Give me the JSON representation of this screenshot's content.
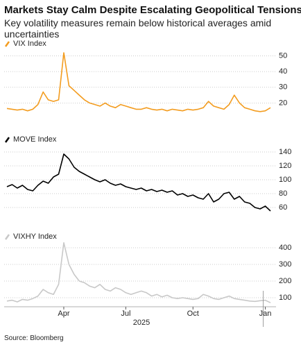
{
  "header": {
    "title": "Markets Stay Calm Despite Escalating Geopolitical Tensions",
    "subtitle": "Key volatility measures remain below historical averages amid uncertainties"
  },
  "chart_data": [
    {
      "type": "line",
      "series": [
        {
          "name": "VIX Index",
          "color": "#f39c1f",
          "values": [
            16.5,
            16,
            15.5,
            16,
            15,
            16,
            19,
            27,
            22,
            21,
            22,
            52,
            31,
            28,
            25,
            22,
            20,
            19,
            18,
            20,
            18,
            17,
            19,
            18,
            17,
            16,
            16,
            17,
            16,
            15.5,
            16,
            15,
            16,
            15.5,
            15,
            16,
            15.5,
            16,
            17,
            21,
            18,
            17,
            16,
            19,
            25,
            20,
            17,
            16,
            15,
            14.5,
            15,
            17
          ]
        }
      ],
      "ylim": [
        10,
        52
      ],
      "yticks": [
        20,
        30,
        40,
        50
      ],
      "grid": true
    },
    {
      "type": "line",
      "series": [
        {
          "name": "MOVE Index",
          "color": "#000000",
          "values": [
            90,
            93,
            88,
            92,
            86,
            84,
            92,
            98,
            95,
            104,
            108,
            137,
            130,
            118,
            112,
            108,
            104,
            100,
            97,
            100,
            95,
            92,
            94,
            90,
            88,
            86,
            88,
            84,
            86,
            83,
            85,
            82,
            84,
            78,
            80,
            76,
            78,
            74,
            72,
            80,
            68,
            72,
            80,
            82,
            72,
            76,
            68,
            66,
            60,
            58,
            62,
            55
          ]
        }
      ],
      "ylim": [
        50,
        145
      ],
      "yticks": [
        60,
        80,
        100,
        120,
        140
      ],
      "grid": true
    },
    {
      "type": "line",
      "series": [
        {
          "name": "VIXHY Index",
          "color": "#c8c8c8",
          "values": [
            80,
            85,
            75,
            90,
            85,
            95,
            110,
            150,
            130,
            120,
            180,
            430,
            300,
            240,
            200,
            190,
            170,
            160,
            180,
            150,
            140,
            160,
            150,
            130,
            120,
            130,
            140,
            130,
            110,
            120,
            105,
            115,
            100,
            95,
            100,
            95,
            90,
            95,
            120,
            110,
            95,
            90,
            100,
            110,
            95,
            90,
            85,
            80,
            78,
            82,
            85,
            70
          ]
        }
      ],
      "ylim": [
        50,
        450
      ],
      "yticks": [
        100,
        200,
        300,
        400
      ],
      "grid": true,
      "categories": [
        null,
        null,
        null,
        null,
        null,
        null,
        null,
        null,
        null,
        null,
        null,
        "Apr",
        null,
        null,
        null,
        null,
        null,
        null,
        null,
        null,
        null,
        null,
        null,
        "Jul",
        null,
        null,
        null,
        null,
        null,
        null,
        null,
        null,
        null,
        null,
        null,
        null,
        "Oct",
        null,
        null,
        null,
        null,
        null,
        null,
        null,
        null,
        null,
        null,
        null,
        null,
        null,
        "Jan",
        null
      ],
      "x_group_label": "2025"
    }
  ],
  "source": "Source: Bloomberg"
}
